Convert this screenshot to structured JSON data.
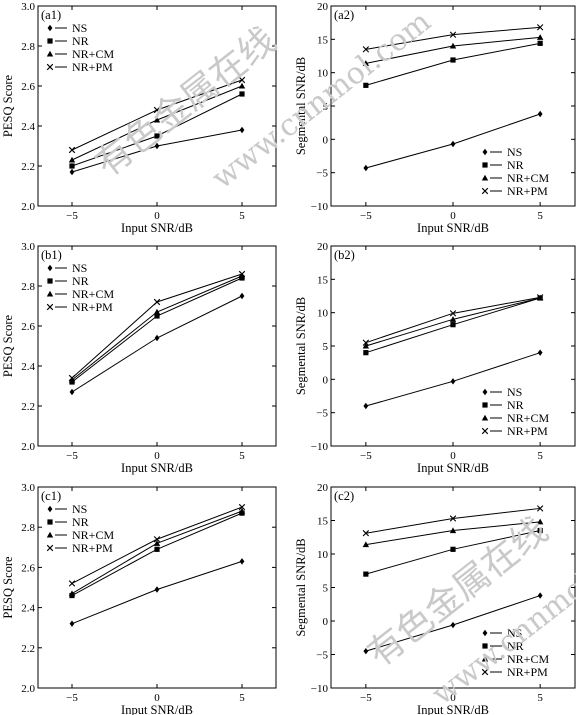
{
  "watermark": {
    "cn": "有色金属在线",
    "url": "www.cnnmol.com"
  },
  "chart_data": [
    {
      "type": "line",
      "panel": "(a1)",
      "x": [
        -5,
        0,
        5
      ],
      "xlim": [
        -7,
        7
      ],
      "xticks": [
        -5,
        0,
        5
      ],
      "xlabel": "Input SNR/dB",
      "ylim": [
        2.0,
        3.0
      ],
      "yticks": [
        2.0,
        2.2,
        2.4,
        2.6,
        2.8,
        3.0
      ],
      "ytick_labels": [
        "2.0",
        "2.2",
        "2.4",
        "2.6",
        "2.8",
        "3.0"
      ],
      "ylabel": "PESQ Score",
      "legend": "top-left",
      "series": [
        {
          "name": "NS",
          "marker": "diamond",
          "values": [
            2.17,
            2.3,
            2.38
          ]
        },
        {
          "name": "NR",
          "marker": "square",
          "values": [
            2.2,
            2.35,
            2.56
          ]
        },
        {
          "name": "NR+CM",
          "marker": "triangle",
          "values": [
            2.23,
            2.43,
            2.6
          ]
        },
        {
          "name": "NR+PM",
          "marker": "x",
          "values": [
            2.28,
            2.48,
            2.63
          ]
        }
      ]
    },
    {
      "type": "line",
      "panel": "(a2)",
      "x": [
        -5,
        0,
        5
      ],
      "xlim": [
        -7,
        7
      ],
      "xticks": [
        -5,
        0,
        5
      ],
      "xlabel": "Input SNR/dB",
      "ylim": [
        -10,
        20
      ],
      "yticks": [
        -10,
        -5,
        0,
        5,
        10,
        15,
        20
      ],
      "ytick_labels": [
        "−10",
        "−5",
        "0",
        "5",
        "10",
        "15",
        "20"
      ],
      "ylabel": "Segmental SNR/dB",
      "legend": "bottom-right",
      "series": [
        {
          "name": "NS",
          "marker": "diamond",
          "values": [
            -4.3,
            -0.7,
            3.8
          ]
        },
        {
          "name": "NR",
          "marker": "square",
          "values": [
            8.1,
            11.9,
            14.4
          ]
        },
        {
          "name": "NR+CM",
          "marker": "triangle",
          "values": [
            11.4,
            14.0,
            15.3
          ]
        },
        {
          "name": "NR+PM",
          "marker": "x",
          "values": [
            13.5,
            15.7,
            16.8
          ]
        }
      ]
    },
    {
      "type": "line",
      "panel": "(b1)",
      "x": [
        -5,
        0,
        5
      ],
      "xlim": [
        -7,
        7
      ],
      "xticks": [
        -5,
        0,
        5
      ],
      "xlabel": "Input SNR/dB",
      "ylim": [
        2.0,
        3.0
      ],
      "yticks": [
        2.0,
        2.2,
        2.4,
        2.6,
        2.8,
        3.0
      ],
      "ytick_labels": [
        "2.0",
        "2.2",
        "2.4",
        "2.6",
        "2.8",
        "3.0"
      ],
      "ylabel": "PESQ Score",
      "legend": "top-left",
      "series": [
        {
          "name": "NS",
          "marker": "diamond",
          "values": [
            2.27,
            2.54,
            2.75
          ]
        },
        {
          "name": "NR",
          "marker": "square",
          "values": [
            2.32,
            2.65,
            2.84
          ]
        },
        {
          "name": "NR+CM",
          "marker": "triangle",
          "values": [
            2.33,
            2.67,
            2.85
          ]
        },
        {
          "name": "NR+PM",
          "marker": "x",
          "values": [
            2.34,
            2.72,
            2.86
          ]
        }
      ]
    },
    {
      "type": "line",
      "panel": "(b2)",
      "x": [
        -5,
        0,
        5
      ],
      "xlim": [
        -7,
        7
      ],
      "xticks": [
        -5,
        0,
        5
      ],
      "xlabel": "Input SNR/dB",
      "ylim": [
        -10,
        20
      ],
      "yticks": [
        -10,
        -5,
        0,
        5,
        10,
        15,
        20
      ],
      "ytick_labels": [
        "−10",
        "−5",
        "0",
        "5",
        "10",
        "15",
        "20"
      ],
      "ylabel": "Segmental SNR/dB",
      "legend": "bottom-right",
      "series": [
        {
          "name": "NS",
          "marker": "diamond",
          "values": [
            -4.0,
            -0.3,
            4.0
          ]
        },
        {
          "name": "NR",
          "marker": "square",
          "values": [
            4.0,
            8.2,
            12.2
          ]
        },
        {
          "name": "NR+CM",
          "marker": "triangle",
          "values": [
            5.0,
            9.0,
            12.2
          ]
        },
        {
          "name": "NR+PM",
          "marker": "x",
          "values": [
            5.5,
            9.9,
            12.3
          ]
        }
      ]
    },
    {
      "type": "line",
      "panel": "(c1)",
      "x": [
        -5,
        0,
        5
      ],
      "xlim": [
        -7,
        7
      ],
      "xticks": [
        -5,
        0,
        5
      ],
      "xlabel": "Input SNR/dB",
      "ylim": [
        2.0,
        3.0
      ],
      "yticks": [
        2.0,
        2.2,
        2.4,
        2.6,
        2.8,
        3.0
      ],
      "ytick_labels": [
        "2.0",
        "2.2",
        "2.4",
        "2.6",
        "2.8",
        "3.0"
      ],
      "ylabel": "PESQ Score",
      "legend": "top-left",
      "series": [
        {
          "name": "NS",
          "marker": "diamond",
          "values": [
            2.32,
            2.49,
            2.63
          ]
        },
        {
          "name": "NR",
          "marker": "square",
          "values": [
            2.46,
            2.69,
            2.87
          ]
        },
        {
          "name": "NR+CM",
          "marker": "triangle",
          "values": [
            2.47,
            2.72,
            2.88
          ]
        },
        {
          "name": "NR+PM",
          "marker": "x",
          "values": [
            2.52,
            2.74,
            2.9
          ]
        }
      ]
    },
    {
      "type": "line",
      "panel": "(c2)",
      "x": [
        -5,
        0,
        5
      ],
      "xlim": [
        -7,
        7
      ],
      "xticks": [
        -5,
        0,
        5
      ],
      "xlabel": "Input SNR/dB",
      "ylim": [
        -10,
        20
      ],
      "yticks": [
        -10,
        -5,
        0,
        5,
        10,
        15,
        20
      ],
      "ytick_labels": [
        "−10",
        "−5",
        "0",
        "5",
        "10",
        "15",
        "20"
      ],
      "ylabel": "Segmental SNR/dB",
      "legend": "bottom-right",
      "series": [
        {
          "name": "NS",
          "marker": "diamond",
          "values": [
            -4.5,
            -0.6,
            3.8
          ]
        },
        {
          "name": "NR",
          "marker": "square",
          "values": [
            7.0,
            10.7,
            13.5
          ]
        },
        {
          "name": "NR+CM",
          "marker": "triangle",
          "values": [
            11.4,
            13.5,
            14.8
          ]
        },
        {
          "name": "NR+PM",
          "marker": "x",
          "values": [
            13.1,
            15.3,
            16.8
          ]
        }
      ]
    }
  ]
}
